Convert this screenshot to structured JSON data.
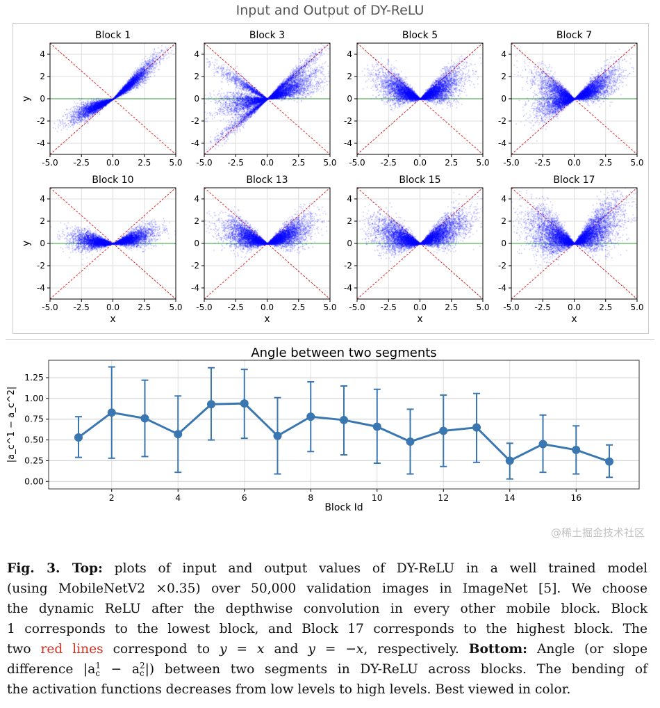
{
  "top_title": "Input and Output of DY-ReLU",
  "scatter_panels": [
    {
      "title": "Block 1",
      "ylabel": "y",
      "xlabel": ""
    },
    {
      "title": "Block 3",
      "ylabel": "",
      "xlabel": ""
    },
    {
      "title": "Block 5",
      "ylabel": "",
      "xlabel": ""
    },
    {
      "title": "Block 7",
      "ylabel": "",
      "xlabel": ""
    },
    {
      "title": "Block 10",
      "ylabel": "y",
      "xlabel": "x"
    },
    {
      "title": "Block 13",
      "ylabel": "",
      "xlabel": "x"
    },
    {
      "title": "Block 15",
      "ylabel": "",
      "xlabel": "x"
    },
    {
      "title": "Block 17",
      "ylabel": "",
      "xlabel": "x"
    }
  ],
  "scatter_axes": {
    "xlim": [
      -5,
      5
    ],
    "ylim": [
      -5,
      5
    ],
    "xticks": [
      "-5.0",
      "-2.5",
      "0.0",
      "2.5",
      "5.0"
    ],
    "yticks": [
      "-4",
      "-2",
      "0",
      "2",
      "4"
    ],
    "point_color": "#0000ff",
    "reference_lines": {
      "color": "#d62728",
      "style": "dashed",
      "lines": [
        "y = x",
        "y = -x"
      ]
    },
    "zero_line_color": "#2ca02c"
  },
  "chart_data": {
    "type": "line",
    "title": "Angle between two segments",
    "xlabel": "Block Id",
    "ylabel": "|a_c^1 − a_c^2|",
    "x": [
      1,
      2,
      3,
      4,
      5,
      6,
      7,
      8,
      9,
      10,
      11,
      12,
      13,
      14,
      15,
      16,
      17
    ],
    "values": [
      0.53,
      0.83,
      0.76,
      0.57,
      0.93,
      0.94,
      0.55,
      0.78,
      0.74,
      0.66,
      0.48,
      0.61,
      0.65,
      0.25,
      0.45,
      0.38,
      0.24
    ],
    "error_upper": [
      0.78,
      1.38,
      1.22,
      1.03,
      1.37,
      1.35,
      1.01,
      1.2,
      1.15,
      1.11,
      0.87,
      1.04,
      1.06,
      0.46,
      0.8,
      0.67,
      0.44
    ],
    "error_lower": [
      0.29,
      0.28,
      0.3,
      0.11,
      0.5,
      0.52,
      0.09,
      0.36,
      0.32,
      0.22,
      0.09,
      0.18,
      0.23,
      0.03,
      0.11,
      0.09,
      0.05
    ],
    "xticks": [
      "2",
      "4",
      "6",
      "8",
      "10",
      "12",
      "14",
      "16"
    ],
    "yticks": [
      "0.00",
      "0.25",
      "0.50",
      "0.75",
      "1.00",
      "1.25"
    ],
    "xlim": [
      0.1,
      17.9
    ],
    "ylim": [
      -0.09,
      1.46
    ],
    "grid": true,
    "color": "#3a77b0"
  },
  "caption": {
    "lines": [
      [
        {
          "t": "Fig. 3. Top:",
          "c": "b"
        },
        {
          "t": " plots of input and output values of DY-ReLU in a well trained model"
        }
      ],
      [
        {
          "t": "(using MobileNetV2 ×0.35) over 50,000 validation images in ImageNet [5]. We choose"
        }
      ],
      [
        {
          "t": "the dynamic ReLU after the depthwise convolution in every other mobile block. Block"
        }
      ],
      [
        {
          "t": "1 corresponds to the lowest block, and Block 17 corresponds to the highest block. The"
        }
      ],
      [
        {
          "t": "two "
        },
        {
          "t": "red lines",
          "c": "r"
        },
        {
          "t": " correspond to "
        },
        {
          "t": "y = x",
          "c": "i"
        },
        {
          "t": " and "
        },
        {
          "t": "y = −x",
          "c": "i"
        },
        {
          "t": ", respectively. "
        },
        {
          "t": "Bottom:",
          "c": "b"
        },
        {
          "t": " Angle (or slope"
        }
      ],
      [
        {
          "t": "difference |a"
        },
        {
          "t": "1",
          "c": "sup"
        },
        {
          "t": "c",
          "c": "sub"
        },
        {
          "t": " − a"
        },
        {
          "t": "2",
          "c": "sup"
        },
        {
          "t": "c",
          "c": "sub"
        },
        {
          "t": "|) between two segments in DY-ReLU across blocks. The bending of"
        }
      ],
      [
        {
          "t": "the activation functions decreases from low levels to high levels. Best viewed in color."
        }
      ]
    ]
  },
  "watermark": "@稀土掘金技术社区"
}
